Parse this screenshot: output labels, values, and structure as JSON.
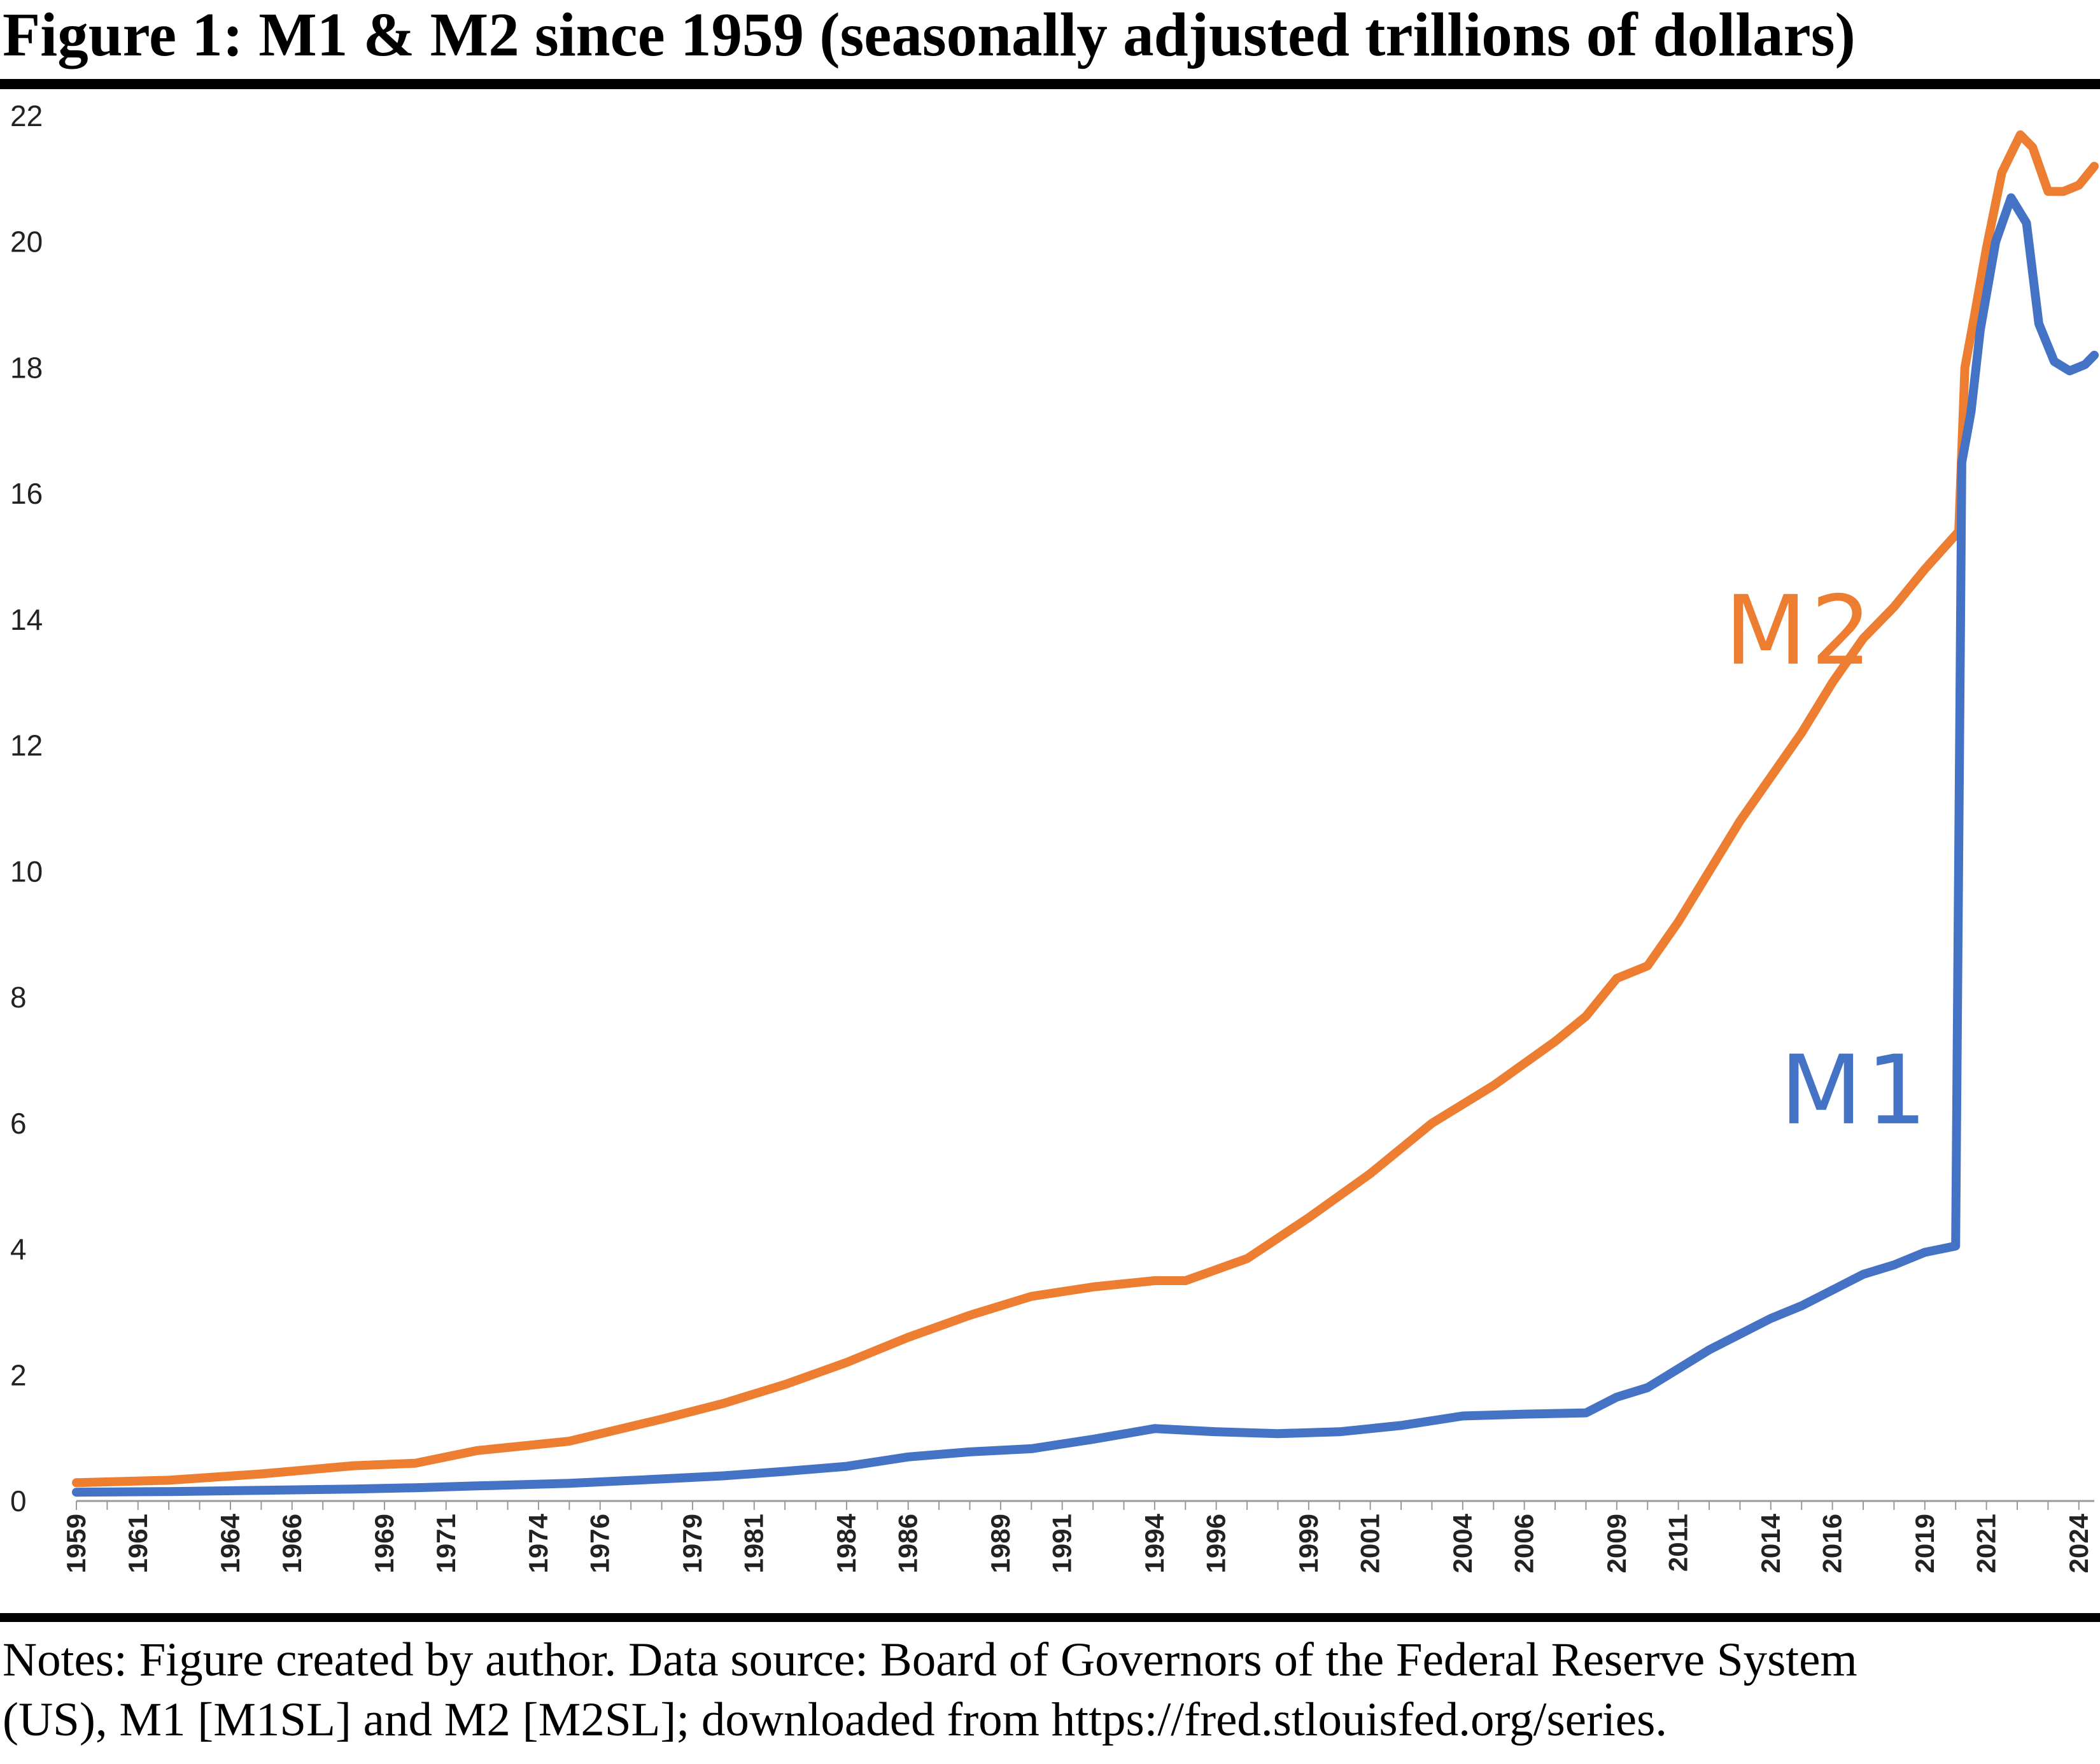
{
  "figure": {
    "title": "Figure 1: M1 & M2 since 1959 (seasonally adjusted trillions of dollars)",
    "notes_line1": "Notes: Figure created by author. Data source: Board of Governors of the Federal Reserve System",
    "notes_line2": "(US), M1 [M1SL] and M2 [M2SL]; downloaded from https://fred.stlouisfed.org/series."
  },
  "colors": {
    "m1": "#4472C4",
    "m2": "#ED7D31",
    "axis": "#9a9a9a",
    "text": "#222222"
  },
  "chart_data": {
    "type": "line",
    "title": "Figure 1: M1 & M2 since 1959 (seasonally adjusted trillions of dollars)",
    "xlabel": "",
    "ylabel": "",
    "ylim": [
      0,
      22
    ],
    "xlim": [
      1959,
      2024.5
    ],
    "grid": false,
    "legend": "none",
    "yticks": [
      0,
      2,
      4,
      6,
      8,
      10,
      12,
      14,
      16,
      18,
      20,
      22
    ],
    "xtick_labels": [
      "1959",
      "1961",
      "1964",
      "1966",
      "1969",
      "1971",
      "1974",
      "1976",
      "1979",
      "1981",
      "1984",
      "1986",
      "1989",
      "1991",
      "1994",
      "1996",
      "1999",
      "2001",
      "2004",
      "2006",
      "2009",
      "2011",
      "2014",
      "2016",
      "2019",
      "2021",
      "2024"
    ],
    "series": [
      {
        "name": "M2",
        "color": "#ED7D31",
        "x": [
          1959,
          1962,
          1965,
          1968,
          1970,
          1972,
          1975,
          1978,
          1980,
          1982,
          1984,
          1986,
          1988,
          1990,
          1992,
          1994,
          1995,
          1997,
          1999,
          2001,
          2003,
          2005,
          2007,
          2008,
          2009,
          2010,
          2011,
          2012,
          2013,
          2014,
          2015,
          2016,
          2017,
          2018,
          2019,
          2020.1,
          2020.3,
          2020.6,
          2021.0,
          2021.5,
          2022.1,
          2022.5,
          2023.0,
          2023.5,
          2024.0,
          2024.5
        ],
        "values": [
          0.29,
          0.33,
          0.43,
          0.56,
          0.6,
          0.8,
          0.95,
          1.3,
          1.55,
          1.85,
          2.2,
          2.6,
          2.95,
          3.25,
          3.4,
          3.5,
          3.5,
          3.85,
          4.5,
          5.2,
          6.0,
          6.6,
          7.3,
          7.7,
          8.3,
          8.5,
          9.2,
          10.0,
          10.8,
          11.5,
          12.2,
          13.0,
          13.7,
          14.2,
          14.8,
          15.4,
          18.0,
          18.8,
          19.9,
          21.1,
          21.7,
          21.5,
          20.8,
          20.8,
          20.9,
          21.2
        ]
      },
      {
        "name": "M1",
        "color": "#4472C4",
        "x": [
          1959,
          1962,
          1965,
          1968,
          1970,
          1972,
          1975,
          1978,
          1980,
          1982,
          1984,
          1986,
          1988,
          1990,
          1992,
          1994,
          1996,
          1998,
          2000,
          2002,
          2004,
          2006,
          2008,
          2009,
          2010,
          2011,
          2012,
          2013,
          2014,
          2015,
          2016,
          2017,
          2018,
          2019,
          2020.0,
          2020.2,
          2020.35,
          2020.5,
          2020.8,
          2021.3,
          2021.8,
          2022.3,
          2022.7,
          2023.2,
          2023.7,
          2024.2,
          2024.5
        ],
        "values": [
          0.14,
          0.15,
          0.17,
          0.19,
          0.21,
          0.24,
          0.28,
          0.35,
          0.4,
          0.47,
          0.55,
          0.7,
          0.78,
          0.83,
          0.98,
          1.15,
          1.1,
          1.07,
          1.1,
          1.2,
          1.35,
          1.38,
          1.4,
          1.65,
          1.8,
          2.1,
          2.4,
          2.65,
          2.9,
          3.1,
          3.35,
          3.6,
          3.75,
          3.95,
          4.05,
          16.5,
          16.9,
          17.3,
          18.6,
          20.0,
          20.7,
          20.3,
          18.7,
          18.1,
          17.95,
          18.05,
          18.2
        ]
      }
    ],
    "annotations": [
      {
        "text": "M2",
        "x": 2012.5,
        "y": 13.3,
        "color": "#ED7D31"
      },
      {
        "text": "M1",
        "x": 2014.3,
        "y": 6.0,
        "color": "#4472C4"
      }
    ]
  }
}
